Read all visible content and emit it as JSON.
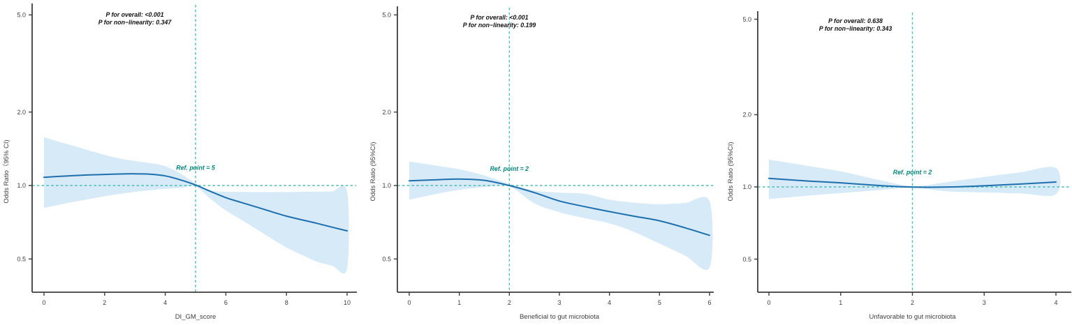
{
  "figure": {
    "background": "#ffffff",
    "style": {
      "line_color": "#1d6fad",
      "band_color": "#d6eaf8",
      "reference_line_color": "#4fbdb2",
      "ref_text_color": "#00857c",
      "axis_color": "#3d3d3d",
      "annotation_color": "#111111"
    }
  },
  "chart_data": [
    {
      "type": "line",
      "title": "",
      "xlabel": "DI_GM_score",
      "ylabel": "Odds Ratio（95% CI)",
      "y_scale": "log10",
      "grid": false,
      "legend": "none",
      "xlim": [
        0,
        10
      ],
      "ylim": [
        0.37,
        5.5
      ],
      "x_ticks": [
        0,
        2,
        4,
        6,
        8,
        10
      ],
      "y_ticks": [
        5.0,
        2.0,
        1.0,
        0.5
      ],
      "y_tick_labels": [
        "5.0",
        "2.0",
        "1.0",
        "0.5"
      ],
      "ref_point": 5,
      "ref_label": "Ref. point = 5",
      "annotations": [
        "P for overall: <0.001",
        "P for non−linearity: 0.347"
      ],
      "x": [
        0,
        0.5,
        1,
        1.5,
        2,
        2.5,
        3,
        3.5,
        4,
        4.5,
        5,
        5.5,
        6,
        6.5,
        7,
        7.5,
        8,
        8.5,
        9,
        9.5,
        10
      ],
      "series": [
        {
          "name": "Odds Ratio",
          "values": [
            1.08,
            1.09,
            1.098,
            1.105,
            1.11,
            1.115,
            1.117,
            1.113,
            1.095,
            1.055,
            1.005,
            0.945,
            0.892,
            0.853,
            0.817,
            0.782,
            0.749,
            0.724,
            0.7,
            0.675,
            0.652
          ]
        },
        {
          "name": "95% CI upper",
          "values": [
            1.58,
            1.51,
            1.45,
            1.39,
            1.335,
            1.29,
            1.26,
            1.235,
            1.2,
            1.12,
            1.02,
            0.955,
            0.943,
            0.941,
            0.94,
            0.94,
            0.94,
            0.942,
            0.944,
            0.946,
            0.947
          ]
        },
        {
          "name": "95% CI lower",
          "values": [
            0.81,
            0.834,
            0.858,
            0.881,
            0.903,
            0.924,
            0.942,
            0.957,
            0.968,
            0.978,
            0.988,
            0.88,
            0.79,
            0.725,
            0.664,
            0.607,
            0.557,
            0.52,
            0.488,
            0.47,
            0.457
          ]
        }
      ]
    },
    {
      "type": "line",
      "title": "",
      "xlabel": "Beneficial to gut microbiota",
      "ylabel": "Odds Ratio (95%CI)",
      "y_scale": "log10",
      "grid": false,
      "legend": "none",
      "xlim": [
        0,
        6
      ],
      "ylim": [
        0.37,
        5.5
      ],
      "x_ticks": [
        0,
        1,
        2,
        3,
        4,
        5,
        6
      ],
      "y_ticks": [
        5.0,
        2.0,
        1.0,
        0.5
      ],
      "y_tick_labels": [
        "5.0",
        "2.0",
        "1.0",
        "0.5"
      ],
      "ref_point": 2,
      "ref_label": "Ref. point = 2",
      "annotations": [
        "P for overall: <0.001",
        "P for non−linearity: 0.199"
      ],
      "x": [
        0,
        0.5,
        1,
        1.5,
        2,
        2.5,
        3,
        3.5,
        4,
        4.5,
        5,
        5.5,
        6
      ],
      "series": [
        {
          "name": "Odds Ratio",
          "values": [
            1.045,
            1.055,
            1.063,
            1.05,
            1.0,
            0.935,
            0.864,
            0.82,
            0.782,
            0.748,
            0.717,
            0.672,
            0.625
          ]
        },
        {
          "name": "95% CI upper",
          "values": [
            1.255,
            1.21,
            1.165,
            1.1,
            1.015,
            0.955,
            0.935,
            0.925,
            0.875,
            0.85,
            0.838,
            0.848,
            0.862
          ]
        },
        {
          "name": "95% CI lower",
          "values": [
            0.875,
            0.92,
            0.96,
            0.985,
            0.99,
            0.845,
            0.778,
            0.735,
            0.7,
            0.645,
            0.578,
            0.518,
            0.462
          ]
        }
      ]
    },
    {
      "type": "line",
      "title": "",
      "xlabel": "Unfavorable to gut microbiota",
      "ylabel": "Odds Ratio (95%CI)",
      "y_scale": "log10",
      "grid": false,
      "legend": "none",
      "xlim": [
        0,
        4
      ],
      "ylim": [
        0.37,
        5.5
      ],
      "x_ticks": [
        0,
        1,
        2,
        3,
        4
      ],
      "y_ticks": [
        5.0,
        2.0,
        1.0,
        0.5
      ],
      "y_tick_labels": [
        "5.0",
        "2.0",
        "1.0",
        "0.5"
      ],
      "ref_point": 2,
      "ref_label": "Ref. point = 2",
      "annotations": [
        "P for overall: 0.638",
        "P for non−linearity: 0.343"
      ],
      "x": [
        0,
        0.5,
        1,
        1.5,
        2,
        2.5,
        3,
        3.5,
        4
      ],
      "series": [
        {
          "name": "Odds Ratio",
          "values": [
            1.085,
            1.06,
            1.04,
            1.015,
            0.998,
            0.999,
            1.011,
            1.028,
            1.048
          ]
        },
        {
          "name": "95% CI upper",
          "values": [
            1.3,
            1.23,
            1.16,
            1.075,
            1.008,
            1.05,
            1.1,
            1.15,
            1.2
          ]
        },
        {
          "name": "95% CI lower",
          "values": [
            0.89,
            0.917,
            0.942,
            0.968,
            0.99,
            0.958,
            0.948,
            0.94,
            0.932
          ]
        }
      ]
    }
  ]
}
